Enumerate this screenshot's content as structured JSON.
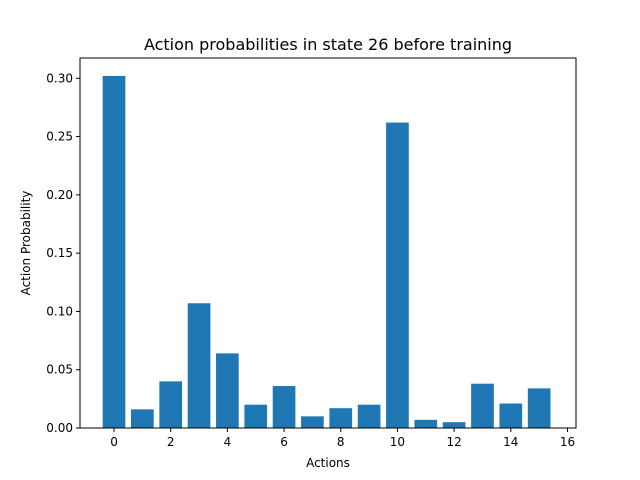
{
  "chart_data": {
    "type": "bar",
    "title": "Action probabilities in state 26 before training",
    "xlabel": "Actions",
    "ylabel": "Action Probability",
    "categories": [
      0,
      1,
      2,
      3,
      4,
      5,
      6,
      7,
      8,
      9,
      10,
      11,
      12,
      13,
      14,
      15
    ],
    "values": [
      0.302,
      0.016,
      0.04,
      0.107,
      0.064,
      0.02,
      0.036,
      0.01,
      0.017,
      0.02,
      0.262,
      0.007,
      0.005,
      0.038,
      0.021,
      0.034
    ],
    "xlim": [
      -1.2,
      16.3
    ],
    "ylim": [
      0,
      0.3174
    ],
    "xticks": [
      0,
      2,
      4,
      6,
      8,
      10,
      12,
      14,
      16
    ],
    "yticks": [
      0.0,
      0.05,
      0.1,
      0.15,
      0.2,
      0.25,
      0.3
    ],
    "ytick_labels": [
      "0.00",
      "0.05",
      "0.10",
      "0.15",
      "0.20",
      "0.25",
      "0.30"
    ],
    "bar_color": "#1f77b4",
    "grid": false,
    "legend": false
  }
}
